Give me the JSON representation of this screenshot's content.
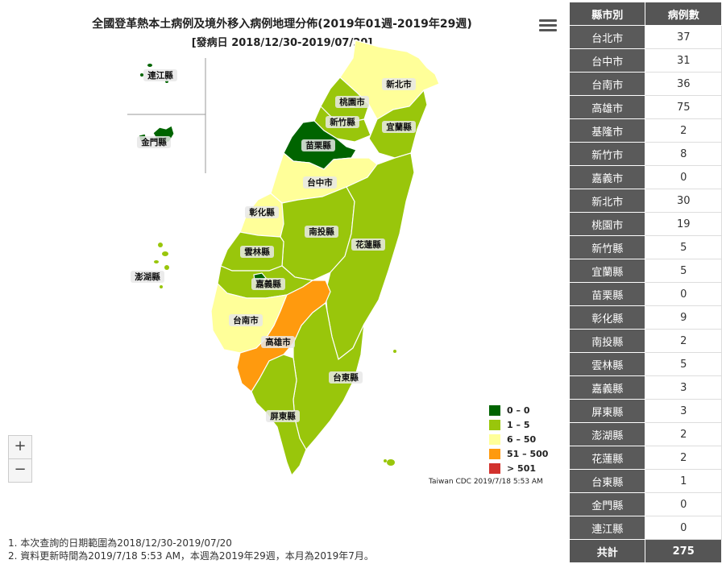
{
  "title": "全國登革熱本土病例及境外移入病例地理分佈(2019年01週-2019年29週)",
  "subtitle": "[發病日 2018/12/30-2019/07/20]",
  "menu_icon": "hamburger-icon",
  "legend": [
    {
      "label": "0 – 0",
      "color": "#006400"
    },
    {
      "label": "1 – 5",
      "color": "#99c60b"
    },
    {
      "label": "6 – 50",
      "color": "#ffff99"
    },
    {
      "label": "51 – 500",
      "color": "#ff9a0e"
    },
    {
      "label": "> 501",
      "color": "#d2322d"
    }
  ],
  "credit": "Taiwan CDC 2019/7/18 5:53 AM",
  "zoom": {
    "in": "+",
    "out": "−"
  },
  "map_labels": {
    "lienchiang": "連江縣",
    "kinmen": "金門縣",
    "taipei": "新北市",
    "taoyuan": "桃園市",
    "hsinchu": "新竹縣",
    "yilan": "宜蘭縣",
    "miaoli": "苗栗縣",
    "taichung": "台中市",
    "changhua": "彰化縣",
    "nantou": "南投縣",
    "hualien": "花蓮縣",
    "yunlin": "雲林縣",
    "penghu": "澎湖縣",
    "chiayi": "嘉義縣",
    "tainan": "台南市",
    "kaohsiung": "高雄市",
    "taitung": "台東縣",
    "pingtung": "屏東縣"
  },
  "table": {
    "headers": [
      "縣市別",
      "病例數"
    ],
    "rows": [
      [
        "台北市",
        "37"
      ],
      [
        "台中市",
        "31"
      ],
      [
        "台南市",
        "36"
      ],
      [
        "高雄市",
        "75"
      ],
      [
        "基隆市",
        "2"
      ],
      [
        "新竹市",
        "8"
      ],
      [
        "嘉義市",
        "0"
      ],
      [
        "新北市",
        "30"
      ],
      [
        "桃園市",
        "19"
      ],
      [
        "新竹縣",
        "5"
      ],
      [
        "宜蘭縣",
        "5"
      ],
      [
        "苗栗縣",
        "0"
      ],
      [
        "彰化縣",
        "9"
      ],
      [
        "南投縣",
        "2"
      ],
      [
        "雲林縣",
        "5"
      ],
      [
        "嘉義縣",
        "3"
      ],
      [
        "屏東縣",
        "3"
      ],
      [
        "澎湖縣",
        "2"
      ],
      [
        "花蓮縣",
        "2"
      ],
      [
        "台東縣",
        "1"
      ],
      [
        "金門縣",
        "0"
      ],
      [
        "連江縣",
        "0"
      ]
    ],
    "total": [
      "共計",
      "275"
    ]
  },
  "notes": [
    "1. 本次查詢的日期範圍為2018/12/30-2019/07/20",
    "2. 資料更新時間為2019/7/18 5:53 AM，本週為2019年29週，本月為2019年7月。"
  ]
}
